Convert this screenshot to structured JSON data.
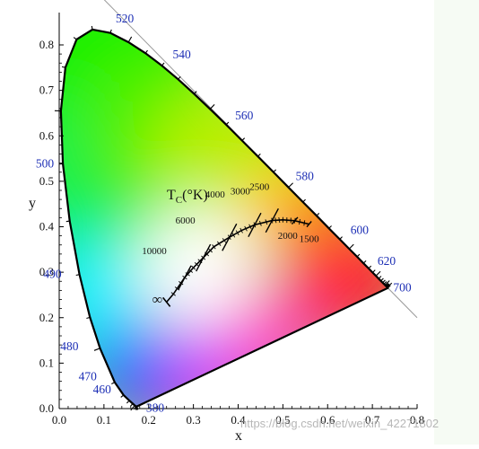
{
  "chart_data": {
    "type": "diagram",
    "x_axis": {
      "label": "x",
      "range": [
        0.0,
        0.8
      ],
      "ticks": [
        "0.0",
        "0.1",
        "0.2",
        "0.3",
        "0.4",
        "0.5",
        "0.6",
        "0.7",
        "0.8"
      ]
    },
    "y_axis": {
      "label": "y",
      "range": [
        0.0,
        0.85
      ],
      "ticks": [
        "0.0",
        "0.1",
        "0.2",
        "0.3",
        "0.4",
        "0.5",
        "0.6",
        "0.7",
        "0.8"
      ]
    },
    "spectral_locus": [
      [
        0.1741,
        0.005
      ],
      [
        0.1738,
        0.0049
      ],
      [
        0.1733,
        0.0048
      ],
      [
        0.1726,
        0.0048
      ],
      [
        0.1714,
        0.0051
      ],
      [
        0.1689,
        0.0069
      ],
      [
        0.1644,
        0.0109
      ],
      [
        0.1566,
        0.0177
      ],
      [
        0.144,
        0.0297
      ],
      [
        0.1241,
        0.0578
      ],
      [
        0.0913,
        0.1327
      ],
      [
        0.0687,
        0.2007
      ],
      [
        0.0454,
        0.295
      ],
      [
        0.0235,
        0.4127
      ],
      [
        0.0082,
        0.5384
      ],
      [
        0.0039,
        0.6548
      ],
      [
        0.0139,
        0.7502
      ],
      [
        0.0389,
        0.812
      ],
      [
        0.0743,
        0.8338
      ],
      [
        0.1142,
        0.8262
      ],
      [
        0.1547,
        0.8059
      ],
      [
        0.1929,
        0.7816
      ],
      [
        0.2296,
        0.7543
      ],
      [
        0.2658,
        0.7243
      ],
      [
        0.3016,
        0.6923
      ],
      [
        0.3373,
        0.6589
      ],
      [
        0.3731,
        0.6245
      ],
      [
        0.4087,
        0.5896
      ],
      [
        0.4441,
        0.5547
      ],
      [
        0.4788,
        0.5202
      ],
      [
        0.5125,
        0.4866
      ],
      [
        0.5448,
        0.4544
      ],
      [
        0.5752,
        0.4242
      ],
      [
        0.6029,
        0.3965
      ],
      [
        0.627,
        0.3725
      ],
      [
        0.6482,
        0.3514
      ],
      [
        0.6658,
        0.334
      ],
      [
        0.6801,
        0.3197
      ],
      [
        0.6915,
        0.3083
      ],
      [
        0.7006,
        0.2993
      ],
      [
        0.7079,
        0.292
      ],
      [
        0.714,
        0.2859
      ],
      [
        0.719,
        0.2809
      ],
      [
        0.723,
        0.277
      ],
      [
        0.726,
        0.274
      ],
      [
        0.7283,
        0.2717
      ],
      [
        0.73,
        0.27
      ],
      [
        0.7311,
        0.2689
      ],
      [
        0.732,
        0.268
      ],
      [
        0.7327,
        0.2673
      ],
      [
        0.7334,
        0.2666
      ],
      [
        0.734,
        0.266
      ],
      [
        0.7344,
        0.2656
      ],
      [
        0.7346,
        0.2654
      ],
      [
        0.7347,
        0.2653
      ]
    ],
    "wavelength_labels": [
      {
        "text": "380",
        "x": 0.1741,
        "y": 0.005
      },
      {
        "text": "460",
        "x": 0.144,
        "y": 0.0297
      },
      {
        "text": "470",
        "x": 0.1241,
        "y": 0.0578
      },
      {
        "text": "480",
        "x": 0.0913,
        "y": 0.1327
      },
      {
        "text": "490",
        "x": 0.0454,
        "y": 0.295
      },
      {
        "text": "500",
        "x": 0.0082,
        "y": 0.5384
      },
      {
        "text": "520",
        "x": 0.0743,
        "y": 0.8338
      },
      {
        "text": "540",
        "x": 0.2296,
        "y": 0.7543
      },
      {
        "text": "560",
        "x": 0.3731,
        "y": 0.6245
      },
      {
        "text": "580",
        "x": 0.5125,
        "y": 0.4866
      },
      {
        "text": "600",
        "x": 0.627,
        "y": 0.3725
      },
      {
        "text": "620",
        "x": 0.6915,
        "y": 0.3083
      },
      {
        "text": "700",
        "x": 0.7347,
        "y": 0.2653
      }
    ],
    "planckian_locus": [
      [
        0.2399,
        0.2342
      ],
      [
        0.2552,
        0.252
      ],
      [
        0.2806,
        0.2883
      ],
      [
        0.3,
        0.31
      ],
      [
        0.3221,
        0.3318
      ],
      [
        0.3457,
        0.3559
      ],
      [
        0.3805,
        0.3768
      ],
      [
        0.4073,
        0.3917
      ],
      [
        0.4369,
        0.4041
      ],
      [
        0.4758,
        0.4137
      ],
      [
        0.5,
        0.4152
      ],
      [
        0.5267,
        0.4133
      ],
      [
        0.5586,
        0.4058
      ]
    ],
    "isotherms": [
      {
        "label": "10000",
        "x": 0.2807,
        "y": 0.2883
      },
      {
        "label": "6000",
        "x": 0.3221,
        "y": 0.3318
      },
      {
        "label": "4000",
        "x": 0.3805,
        "y": 0.3768
      },
      {
        "label": "3000",
        "x": 0.4369,
        "y": 0.4041
      },
      {
        "label": "2500",
        "x": 0.4758,
        "y": 0.4137
      },
      {
        "label": "2000",
        "x": 0.5267,
        "y": 0.4133
      },
      {
        "label": "1500",
        "x": 0.5586,
        "y": 0.4058
      }
    ],
    "infinity_label": "∞",
    "cct_title": "T",
    "cct_subscript": "C",
    "cct_unit": "(°K)",
    "watermark": "https://blog.csdn.net/weixin_42271802"
  }
}
